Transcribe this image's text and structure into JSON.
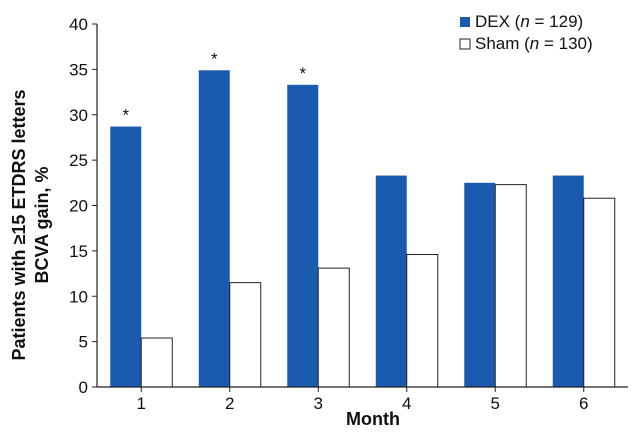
{
  "chart_data": {
    "type": "bar",
    "title": "",
    "xlabel": "Month",
    "ylabel_line1": "Patients with ≥15 ETDRS letters",
    "ylabel_line2": "BCVA gain, %",
    "categories": [
      "1",
      "2",
      "3",
      "4",
      "5",
      "6"
    ],
    "ylim": [
      0,
      40
    ],
    "yticks": [
      0,
      5,
      10,
      15,
      20,
      25,
      30,
      35,
      40
    ],
    "series": [
      {
        "name_prefix": "DEX (",
        "name_n": "n",
        "name_suffix": " = 129)",
        "color": "#1a5bb0",
        "values": [
          28.7,
          34.9,
          33.3,
          23.3,
          22.5,
          23.3
        ]
      },
      {
        "name_prefix": "Sham (",
        "name_n": "n",
        "name_suffix": " = 130)",
        "color": "#ffffff",
        "values": [
          5.4,
          11.5,
          13.1,
          14.6,
          22.3,
          20.8
        ]
      }
    ],
    "significance_marker": "*",
    "significant_categories": [
      "1",
      "2",
      "3"
    ],
    "legend_position": "top-right",
    "grid": false
  }
}
